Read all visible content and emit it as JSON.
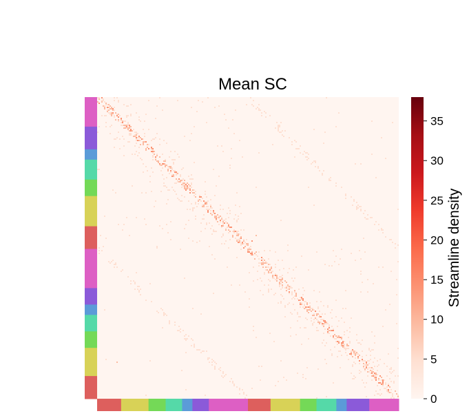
{
  "chart_data": {
    "type": "heatmap",
    "title": "Mean SC",
    "colorbar": {
      "label": "Streamline density",
      "range": [
        0,
        38
      ],
      "ticks": [
        "0",
        "5",
        "10",
        "15",
        "20",
        "25",
        "30",
        "35"
      ],
      "colormap": [
        "#fff5f0",
        "#fee0d2",
        "#fcbba1",
        "#fc9272",
        "#fb6a4a",
        "#ef3b2c",
        "#cb181d",
        "#a50f15",
        "#67000d"
      ]
    },
    "grid": false,
    "module_colors": {
      "left": [
        "#dd5fc4",
        "#8b5ad9",
        "#5b9bd8",
        "#55d9a8",
        "#74d957",
        "#d8d257",
        "#dd5f5d",
        "#dd5fc4",
        "#8b5ad9",
        "#5b9bd8",
        "#55d9a8",
        "#74d957",
        "#d8d257",
        "#dd5f5d"
      ],
      "bottom": [
        "#dd5f5d",
        "#d8d257",
        "#74d957",
        "#55d9a8",
        "#5b9bd8",
        "#8b5ad9",
        "#dd5fc4",
        "#dd5f5d",
        "#d8d257",
        "#74d957",
        "#55d9a8",
        "#5b9bd8",
        "#8b5ad9",
        "#dd5fc4"
      ]
    }
  }
}
